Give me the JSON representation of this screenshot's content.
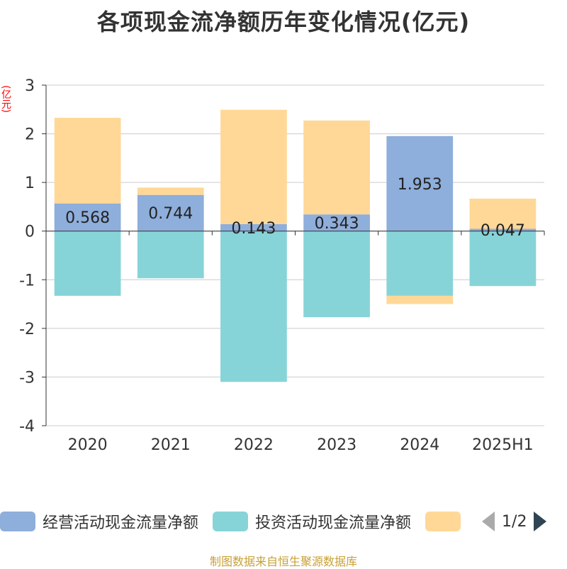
{
  "title": "各项现金流净额历年变化情况(亿元)",
  "unit_label": "(亿元)",
  "source": "制图数据来自恒生聚源数据库",
  "legend": {
    "items": [
      {
        "label": "经营活动现金流量净额",
        "color": "#8eaedb"
      },
      {
        "label": "投资活动现金流量净额",
        "color": "#87d4d8"
      },
      {
        "label": "",
        "color": "#ffd897"
      }
    ],
    "page": "1/2"
  },
  "chart_data": {
    "type": "bar",
    "stacked": true,
    "categories": [
      "2020",
      "2021",
      "2022",
      "2023",
      "2024",
      "2025H1"
    ],
    "ylim": [
      -4,
      3
    ],
    "yticks": [
      -4,
      -3,
      -2,
      -1,
      0,
      1,
      2,
      3
    ],
    "grid": true,
    "series": [
      {
        "name": "经营活动现金流量净额",
        "color": "#8eaedb",
        "values": [
          0.568,
          0.744,
          0.143,
          0.343,
          1.953,
          0.047
        ],
        "labels": [
          "0.568",
          "0.744",
          "0.143",
          "0.343",
          "1.953",
          "0.047"
        ]
      },
      {
        "name": "投资活动现金流量净额",
        "color": "#87d4d8",
        "values": [
          -1.33,
          -0.97,
          -3.1,
          -1.77,
          -1.33,
          -1.13
        ]
      },
      {
        "name": "",
        "color": "#ffd897",
        "values": [
          1.76,
          0.15,
          2.35,
          1.93,
          -0.17,
          0.62
        ]
      }
    ]
  }
}
